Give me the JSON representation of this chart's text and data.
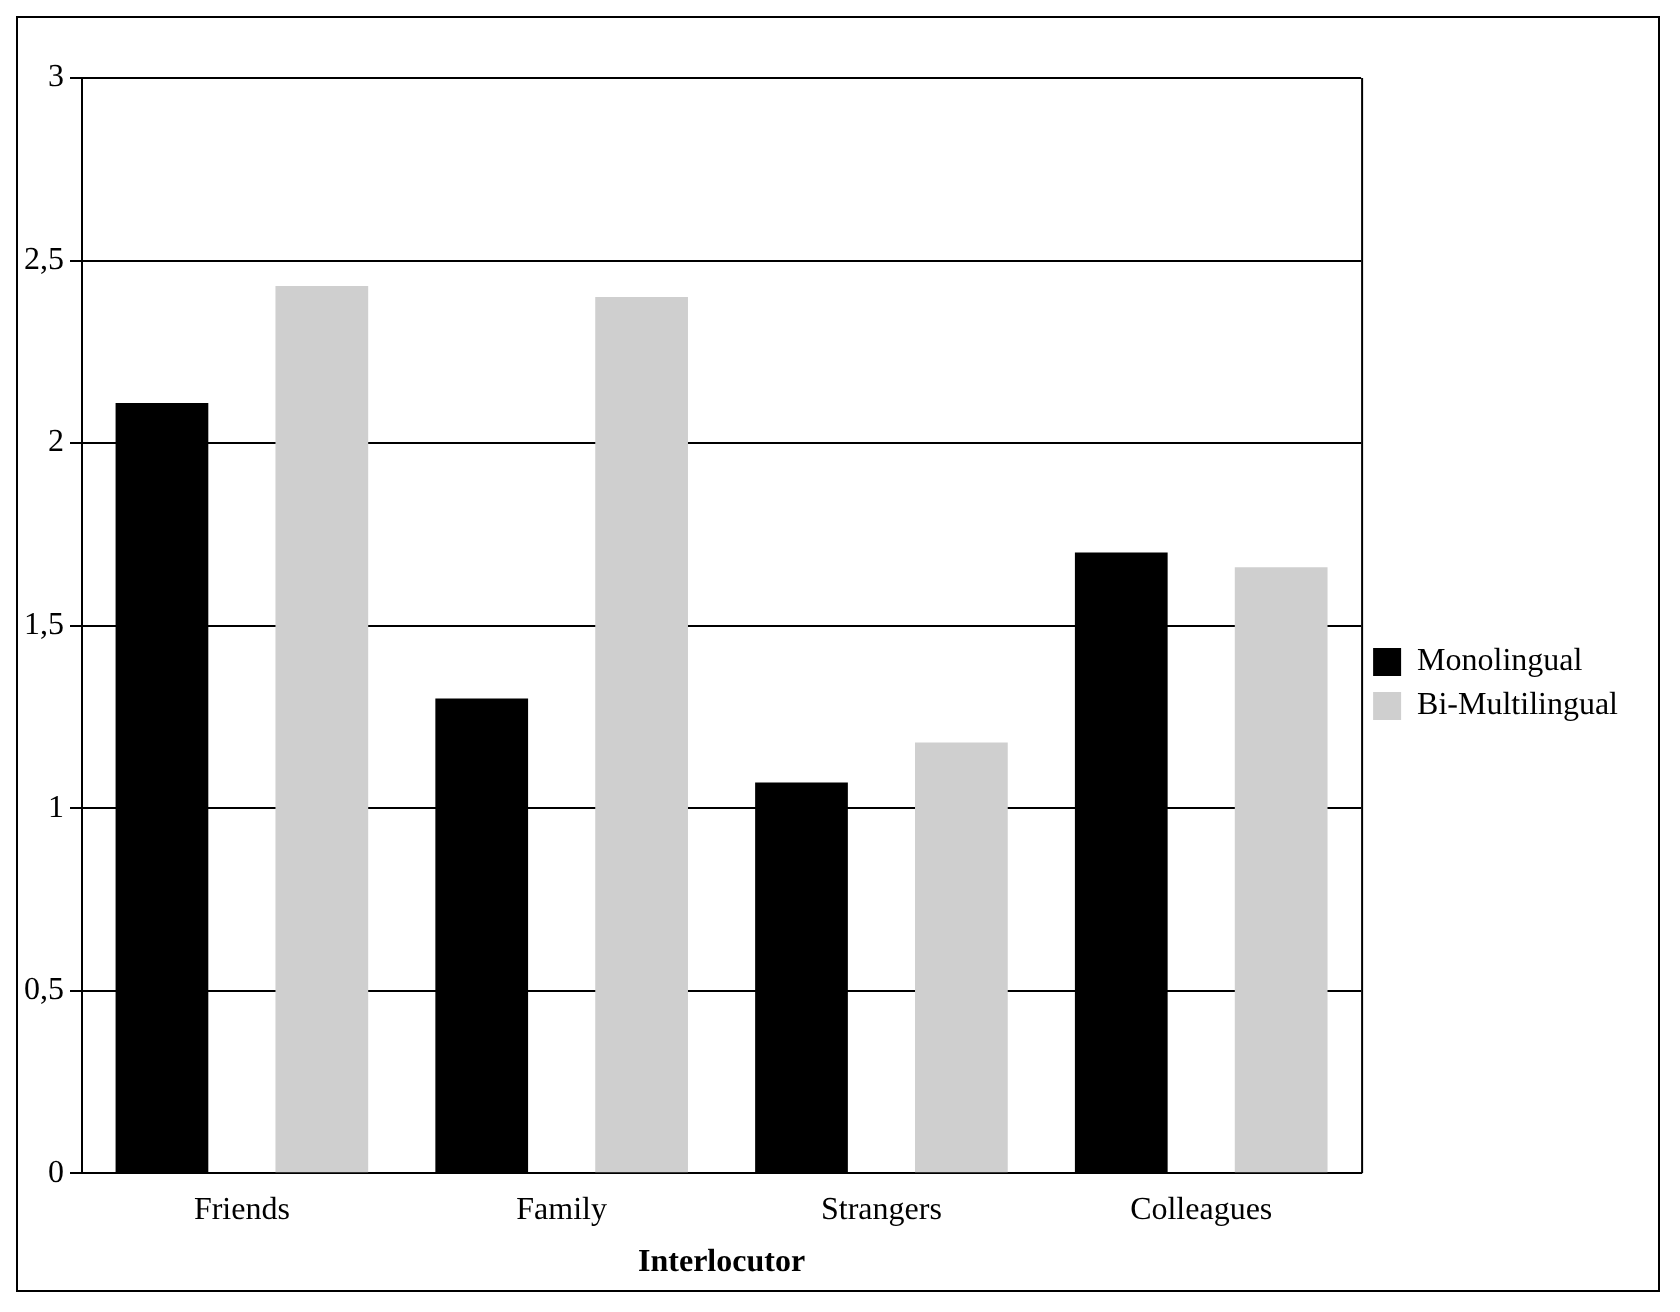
{
  "chart_data": {
    "type": "bar",
    "xlabel": "Interlocutor",
    "categories": [
      "Friends",
      "Family",
      "Strangers",
      "Colleagues"
    ],
    "series": [
      {
        "name": "Monolingual",
        "color": "#000000",
        "values": [
          2.11,
          1.3,
          1.07,
          1.7
        ]
      },
      {
        "name": "Bi-Multilingual",
        "color": "#cfcfcf",
        "values": [
          2.43,
          2.4,
          1.18,
          1.66
        ]
      }
    ],
    "ylim": [
      0,
      3
    ],
    "yticks": [
      0,
      {
        "value": 0.5,
        "label": "0,5"
      },
      1,
      {
        "value": 1.5,
        "label": "1,5"
      },
      2,
      {
        "value": 2.5,
        "label": "2,5"
      },
      3
    ],
    "grid": "y",
    "legend": "right"
  }
}
